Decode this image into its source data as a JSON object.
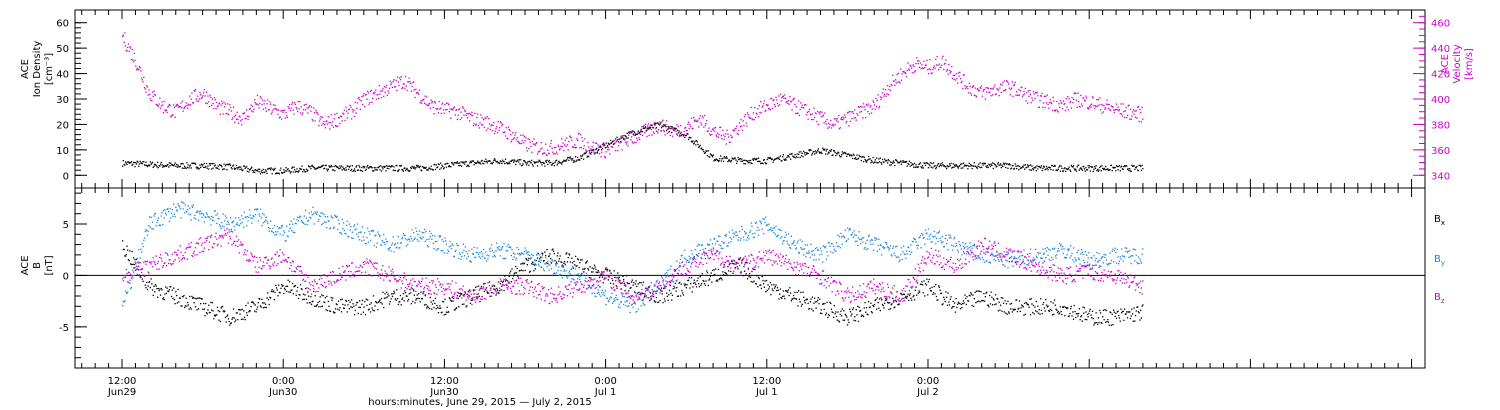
{
  "chart_data": [
    {
      "type": "scatter",
      "panel": "top",
      "ylabel_lines": [
        "ACE",
        "Ion Density",
        "[cm⁻³]"
      ],
      "y2label_lines": [
        "ACE",
        "Velocity",
        "[km/s]"
      ],
      "ylim": [
        -5,
        65
      ],
      "y2lim": [
        330,
        470
      ],
      "yticks": [
        0,
        10,
        20,
        30,
        40,
        50,
        60
      ],
      "y2ticks": [
        340,
        360,
        380,
        400,
        420,
        440,
        460
      ],
      "series": [
        {
          "axis": "left",
          "color": "#000000",
          "x": [
            0,
            2,
            4,
            6,
            8,
            10,
            12,
            14,
            16,
            18,
            20,
            22,
            24,
            26,
            28,
            30,
            32,
            33,
            34,
            36,
            38,
            40,
            42,
            44,
            46,
            48,
            50,
            52,
            54,
            56,
            58,
            60,
            62,
            64,
            66,
            68,
            70,
            72,
            74,
            76
          ],
          "y": [
            5,
            4.5,
            4,
            4,
            3.5,
            2,
            2,
            3,
            3,
            3,
            3,
            3,
            4,
            5,
            6,
            5,
            5,
            6,
            7,
            12,
            17,
            20,
            16,
            7,
            6,
            6,
            8,
            10,
            8,
            6,
            5,
            4,
            4,
            4,
            4,
            3,
            3,
            3,
            3,
            3
          ]
        },
        {
          "axis": "right",
          "color": "#cc00cc",
          "x": [
            0,
            1,
            2,
            3,
            4,
            5,
            6,
            7,
            8,
            9,
            10,
            11,
            12,
            13,
            14,
            15,
            16,
            17,
            18,
            19,
            20,
            21,
            22,
            23,
            24,
            25,
            26,
            27,
            28,
            29,
            30,
            31,
            32,
            33,
            34,
            35,
            36,
            37,
            38,
            39,
            40,
            41,
            42,
            43,
            44,
            45,
            46,
            47,
            48,
            49,
            50,
            51,
            52,
            53,
            54,
            55,
            56,
            57,
            58,
            59,
            60,
            61,
            62,
            63,
            64,
            65,
            66,
            67,
            68,
            69,
            70,
            71,
            72,
            73,
            74,
            75,
            76
          ],
          "y": [
            450,
            430,
            405,
            395,
            390,
            400,
            405,
            395,
            390,
            385,
            398,
            393,
            388,
            395,
            390,
            380,
            385,
            390,
            400,
            405,
            410,
            415,
            405,
            395,
            392,
            390,
            385,
            382,
            378,
            372,
            365,
            362,
            362,
            365,
            368,
            362,
            360,
            365,
            370,
            375,
            380,
            375,
            378,
            385,
            375,
            370,
            380,
            390,
            395,
            400,
            395,
            390,
            385,
            380,
            385,
            390,
            395,
            410,
            420,
            428,
            425,
            430,
            420,
            410,
            405,
            408,
            410,
            405,
            400,
            398,
            395,
            400,
            398,
            395,
            392,
            390,
            388
          ]
        }
      ]
    },
    {
      "type": "scatter",
      "panel": "bottom",
      "ylabel_lines": [
        "ACE",
        "B",
        "[nT]"
      ],
      "ylim": [
        -9,
        8.5
      ],
      "yticks": [
        -5,
        0,
        5
      ],
      "zero_line": true,
      "legend": [
        {
          "text": "B",
          "sub": "x",
          "color": "#000000"
        },
        {
          "text": "B",
          "sub": "y",
          "color": "#1a88e0"
        },
        {
          "text": "B",
          "sub": "z",
          "color": "#cc00cc"
        }
      ],
      "series": [
        {
          "name": "Bx",
          "color": "#000000",
          "x": [
            0,
            2,
            4,
            6,
            8,
            10,
            12,
            14,
            16,
            18,
            20,
            22,
            24,
            26,
            28,
            30,
            32,
            34,
            36,
            38,
            40,
            42,
            44,
            46,
            48,
            50,
            52,
            54,
            56,
            58,
            60,
            62,
            64,
            66,
            68,
            70,
            72,
            74,
            76
          ],
          "y": [
            3,
            -1,
            -2,
            -3,
            -4,
            -3,
            -1,
            -2,
            -3,
            -3,
            -2,
            -2,
            -3,
            -2,
            -1,
            1,
            2,
            1,
            0,
            -1,
            -2,
            -1,
            0,
            1,
            -1,
            -2,
            -3,
            -4,
            -3,
            -2,
            -1,
            -3,
            -2,
            -3,
            -3,
            -3,
            -4,
            -4,
            -3.5
          ]
        },
        {
          "name": "By",
          "color": "#1a88e0",
          "x": [
            0,
            2,
            4,
            6,
            8,
            10,
            12,
            14,
            16,
            18,
            20,
            22,
            24,
            26,
            28,
            30,
            32,
            34,
            36,
            38,
            40,
            42,
            44,
            46,
            48,
            50,
            52,
            54,
            56,
            58,
            60,
            62,
            64,
            66,
            68,
            70,
            72,
            74,
            76
          ],
          "y": [
            -3,
            5,
            6.5,
            6,
            5,
            6,
            4,
            6,
            5,
            4,
            3,
            4,
            3,
            2,
            2.5,
            2,
            1,
            0,
            -2,
            -3,
            -1,
            2,
            3,
            4,
            5,
            3,
            2,
            4,
            3,
            2,
            4,
            3,
            2,
            1.5,
            2,
            2.5,
            1.5,
            2,
            2
          ]
        },
        {
          "name": "Bz",
          "color": "#cc00cc",
          "x": [
            0,
            2,
            4,
            6,
            8,
            10,
            12,
            14,
            16,
            18,
            20,
            22,
            24,
            26,
            28,
            30,
            32,
            34,
            36,
            38,
            40,
            42,
            44,
            46,
            48,
            50,
            52,
            54,
            56,
            58,
            60,
            62,
            64,
            66,
            68,
            70,
            72,
            74,
            76
          ],
          "y": [
            0,
            1,
            2,
            3,
            4,
            1,
            2,
            -1,
            0,
            1,
            0,
            -1,
            -1,
            -2,
            -1,
            -1,
            -2,
            -1,
            0,
            -2,
            -1,
            1,
            2,
            1,
            2,
            1,
            0,
            -2,
            -1,
            -2,
            2,
            1,
            3,
            2,
            1,
            0,
            0.5,
            0,
            -1
          ]
        }
      ]
    }
  ],
  "x_axis": {
    "xlim": [
      -3.5,
      97
    ],
    "tick_times": [
      "12:00",
      "0:00",
      "12:00",
      "0:00",
      "12:00",
      "0:00"
    ],
    "tick_dates": [
      "Jun29",
      "Jun30",
      "Jun30",
      "Jul 1",
      "Jul 1",
      "Jul 2"
    ],
    "tick_positions_hours": [
      0,
      12,
      24,
      36,
      48,
      60
    ],
    "tick_hours_real": [
      12,
      24,
      36,
      48,
      60,
      72
    ],
    "xlabel": "hours:minutes, June 29, 2015 — July  2, 2015"
  }
}
